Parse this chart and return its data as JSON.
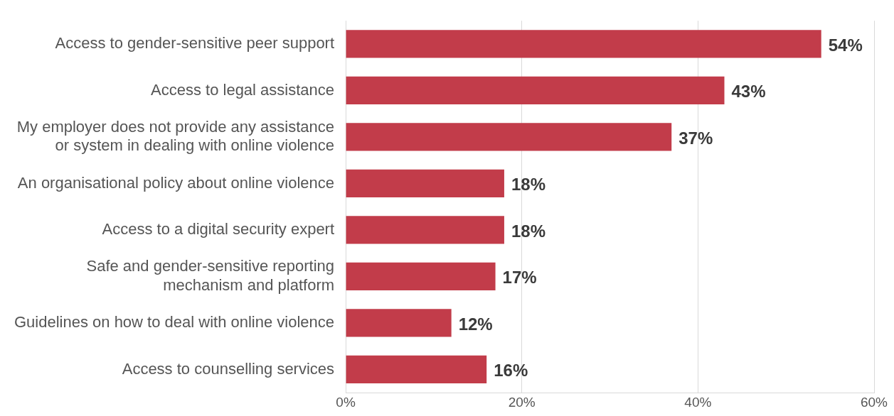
{
  "chart_data": {
    "type": "bar",
    "orientation": "horizontal",
    "categories": [
      "Access to gender-sensitive peer support",
      "Access to legal assistance",
      "My employer does not provide any assistance\nor system in dealing with online violence",
      "An organisational policy about online violence",
      "Access to a digital security expert",
      "Safe and gender-sensitive reporting\nmechanism and platform",
      "Guidelines on how to deal with online violence",
      "Access to counselling services"
    ],
    "values": [
      54,
      43,
      37,
      18,
      18,
      17,
      12,
      16
    ],
    "value_labels": [
      "54%",
      "43%",
      "37%",
      "18%",
      "18%",
      "17%",
      "12%",
      "16%"
    ],
    "color": "#c23c4a",
    "xlim": [
      0,
      60
    ],
    "xticks": [
      {
        "value": 0,
        "label": "0%"
      },
      {
        "value": 20,
        "label": "20%"
      },
      {
        "value": 40,
        "label": "40%"
      },
      {
        "value": 60,
        "label": "60%"
      }
    ],
    "grid": "x",
    "legend": false
  }
}
